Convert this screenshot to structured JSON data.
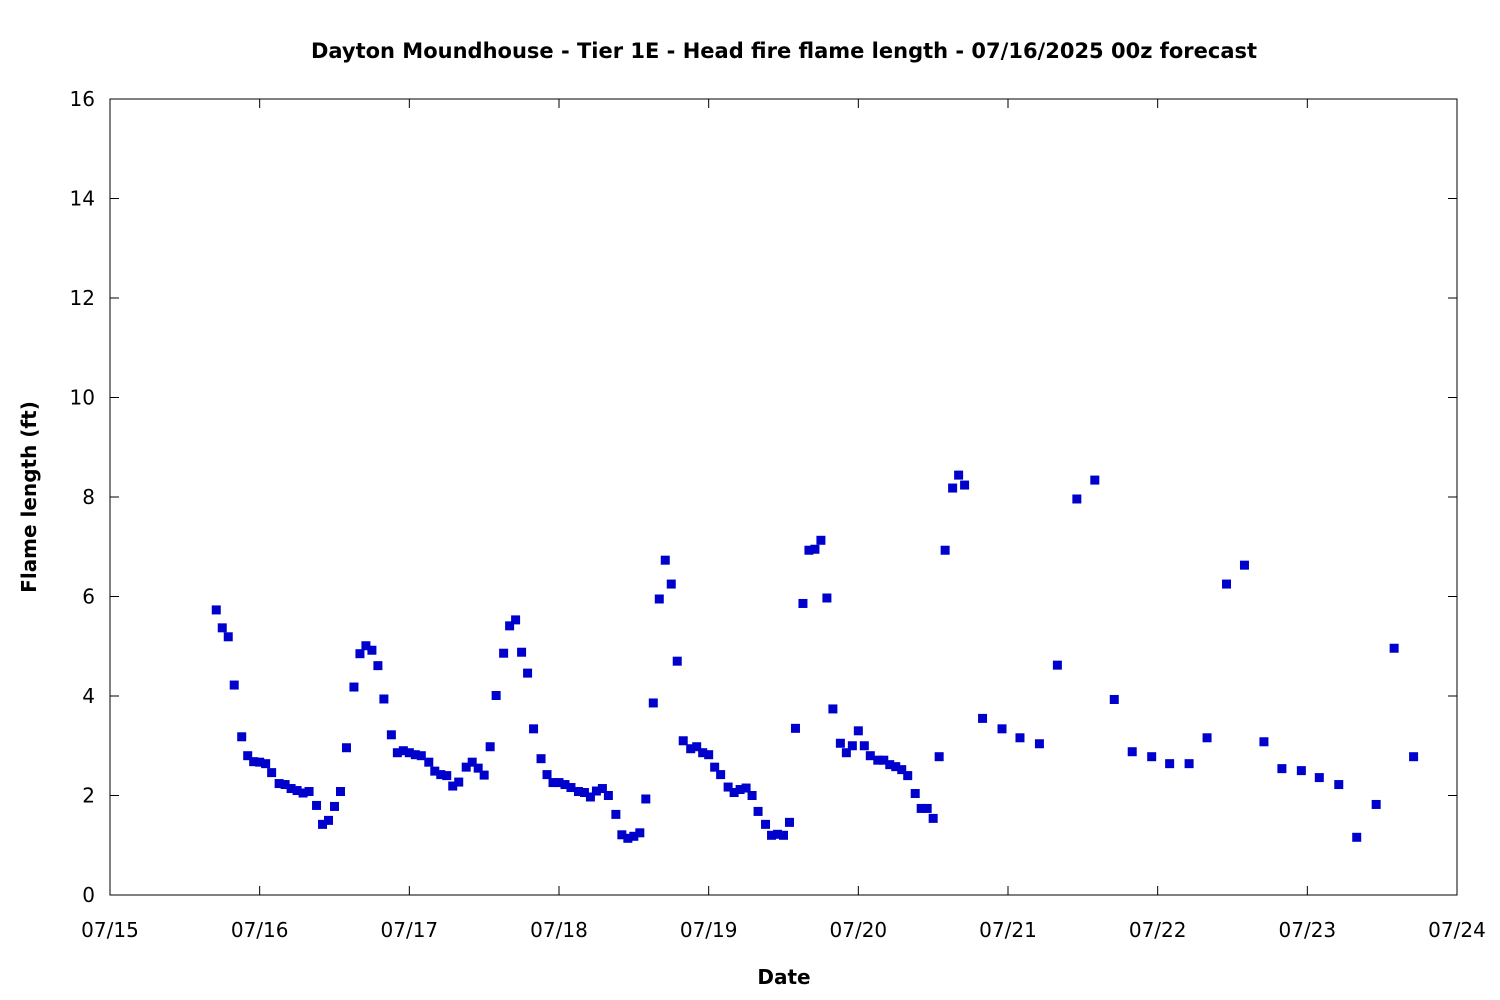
{
  "chart_data": {
    "type": "scatter",
    "title": "Dayton Moundhouse - Tier 1E - Head fire flame length - 07/16/2025 00z forecast",
    "xlabel": "Date",
    "ylabel": "Flame length (ft)",
    "x_unit": "days since 07/15 00:00 (x-axis shows MM/DD)",
    "xlim_labels": [
      "07/15",
      "07/24"
    ],
    "x_ticks": [
      "07/15",
      "07/16",
      "07/17",
      "07/18",
      "07/19",
      "07/20",
      "07/21",
      "07/22",
      "07/23",
      "07/24"
    ],
    "ylim": [
      0,
      16
    ],
    "y_ticks": [
      "0",
      "2",
      "4",
      "6",
      "8",
      "10",
      "12",
      "14",
      "16"
    ],
    "grid": false,
    "marker_color": "#0000cc",
    "series": [
      {
        "points": [
          [
            0.71,
            5.73
          ],
          [
            0.75,
            5.37
          ],
          [
            0.79,
            5.19
          ],
          [
            0.83,
            4.22
          ],
          [
            0.88,
            3.18
          ],
          [
            0.92,
            2.8
          ],
          [
            0.96,
            2.68
          ],
          [
            1.0,
            2.67
          ],
          [
            1.04,
            2.64
          ],
          [
            1.08,
            2.46
          ],
          [
            1.13,
            2.24
          ],
          [
            1.17,
            2.22
          ],
          [
            1.21,
            2.14
          ],
          [
            1.25,
            2.1
          ],
          [
            1.29,
            2.05
          ],
          [
            1.33,
            2.08
          ],
          [
            1.38,
            1.8
          ],
          [
            1.42,
            1.42
          ],
          [
            1.46,
            1.5
          ],
          [
            1.5,
            1.78
          ],
          [
            1.54,
            2.08
          ],
          [
            1.58,
            2.96
          ],
          [
            1.63,
            4.18
          ],
          [
            1.67,
            4.85
          ],
          [
            1.71,
            5.01
          ],
          [
            1.75,
            4.92
          ],
          [
            1.79,
            4.61
          ],
          [
            1.83,
            3.94
          ],
          [
            1.88,
            3.22
          ],
          [
            1.92,
            2.86
          ],
          [
            1.96,
            2.9
          ],
          [
            2.0,
            2.86
          ],
          [
            2.04,
            2.82
          ],
          [
            2.08,
            2.8
          ],
          [
            2.13,
            2.67
          ],
          [
            2.17,
            2.49
          ],
          [
            2.21,
            2.42
          ],
          [
            2.25,
            2.4
          ],
          [
            2.29,
            2.19
          ],
          [
            2.33,
            2.27
          ],
          [
            2.38,
            2.57
          ],
          [
            2.42,
            2.67
          ],
          [
            2.46,
            2.55
          ],
          [
            2.5,
            2.41
          ],
          [
            2.54,
            2.98
          ],
          [
            2.58,
            4.01
          ],
          [
            2.63,
            4.86
          ],
          [
            2.67,
            5.41
          ],
          [
            2.71,
            5.53
          ],
          [
            2.75,
            4.88
          ],
          [
            2.79,
            4.46
          ],
          [
            2.83,
            3.34
          ],
          [
            2.88,
            2.74
          ],
          [
            2.92,
            2.42
          ],
          [
            2.96,
            2.26
          ],
          [
            3.0,
            2.26
          ],
          [
            3.04,
            2.22
          ],
          [
            3.08,
            2.16
          ],
          [
            3.13,
            2.08
          ],
          [
            3.17,
            2.06
          ],
          [
            3.21,
            1.97
          ],
          [
            3.25,
            2.09
          ],
          [
            3.29,
            2.14
          ],
          [
            3.33,
            2.0
          ],
          [
            3.38,
            1.62
          ],
          [
            3.42,
            1.21
          ],
          [
            3.46,
            1.14
          ],
          [
            3.5,
            1.18
          ],
          [
            3.54,
            1.25
          ],
          [
            3.58,
            1.93
          ],
          [
            3.63,
            3.86
          ],
          [
            3.67,
            5.95
          ],
          [
            3.71,
            6.73
          ],
          [
            3.75,
            6.25
          ],
          [
            3.79,
            4.7
          ],
          [
            3.83,
            3.1
          ],
          [
            3.88,
            2.94
          ],
          [
            3.92,
            2.98
          ],
          [
            3.96,
            2.86
          ],
          [
            4.0,
            2.82
          ],
          [
            4.04,
            2.57
          ],
          [
            4.08,
            2.42
          ],
          [
            4.13,
            2.17
          ],
          [
            4.17,
            2.06
          ],
          [
            4.21,
            2.12
          ],
          [
            4.25,
            2.15
          ],
          [
            4.29,
            2.0
          ],
          [
            4.33,
            1.68
          ],
          [
            4.38,
            1.42
          ],
          [
            4.42,
            1.2
          ],
          [
            4.46,
            1.22
          ],
          [
            4.5,
            1.2
          ],
          [
            4.54,
            1.46
          ],
          [
            4.58,
            3.35
          ],
          [
            4.63,
            5.86
          ],
          [
            4.67,
            6.93
          ],
          [
            4.71,
            6.95
          ],
          [
            4.75,
            7.13
          ],
          [
            4.79,
            5.97
          ],
          [
            4.83,
            3.74
          ],
          [
            4.88,
            3.05
          ],
          [
            4.92,
            2.86
          ],
          [
            4.96,
            3.0
          ],
          [
            5.0,
            3.3
          ],
          [
            5.04,
            3.0
          ],
          [
            5.08,
            2.8
          ],
          [
            5.13,
            2.71
          ],
          [
            5.17,
            2.71
          ],
          [
            5.21,
            2.62
          ],
          [
            5.25,
            2.58
          ],
          [
            5.29,
            2.52
          ],
          [
            5.33,
            2.4
          ],
          [
            5.38,
            2.04
          ],
          [
            5.42,
            1.74
          ],
          [
            5.46,
            1.74
          ],
          [
            5.5,
            1.54
          ],
          [
            5.54,
            2.78
          ],
          [
            5.58,
            6.93
          ],
          [
            5.63,
            8.18
          ],
          [
            5.67,
            8.44
          ],
          [
            5.71,
            8.24
          ],
          [
            5.83,
            3.55
          ],
          [
            5.96,
            3.34
          ],
          [
            6.08,
            3.16
          ],
          [
            6.21,
            3.04
          ],
          [
            6.33,
            4.62
          ],
          [
            6.46,
            7.96
          ],
          [
            6.58,
            8.34
          ],
          [
            6.71,
            3.93
          ],
          [
            6.83,
            2.88
          ],
          [
            6.96,
            2.78
          ],
          [
            7.08,
            2.64
          ],
          [
            7.21,
            2.64
          ],
          [
            7.33,
            3.16
          ],
          [
            7.46,
            6.25
          ],
          [
            7.58,
            6.63
          ],
          [
            7.71,
            3.08
          ],
          [
            7.83,
            2.54
          ],
          [
            7.96,
            2.5
          ],
          [
            8.08,
            2.36
          ],
          [
            8.21,
            2.22
          ],
          [
            8.33,
            1.16
          ],
          [
            8.46,
            1.82
          ],
          [
            8.58,
            4.96
          ],
          [
            8.71,
            2.78
          ]
        ]
      }
    ]
  }
}
